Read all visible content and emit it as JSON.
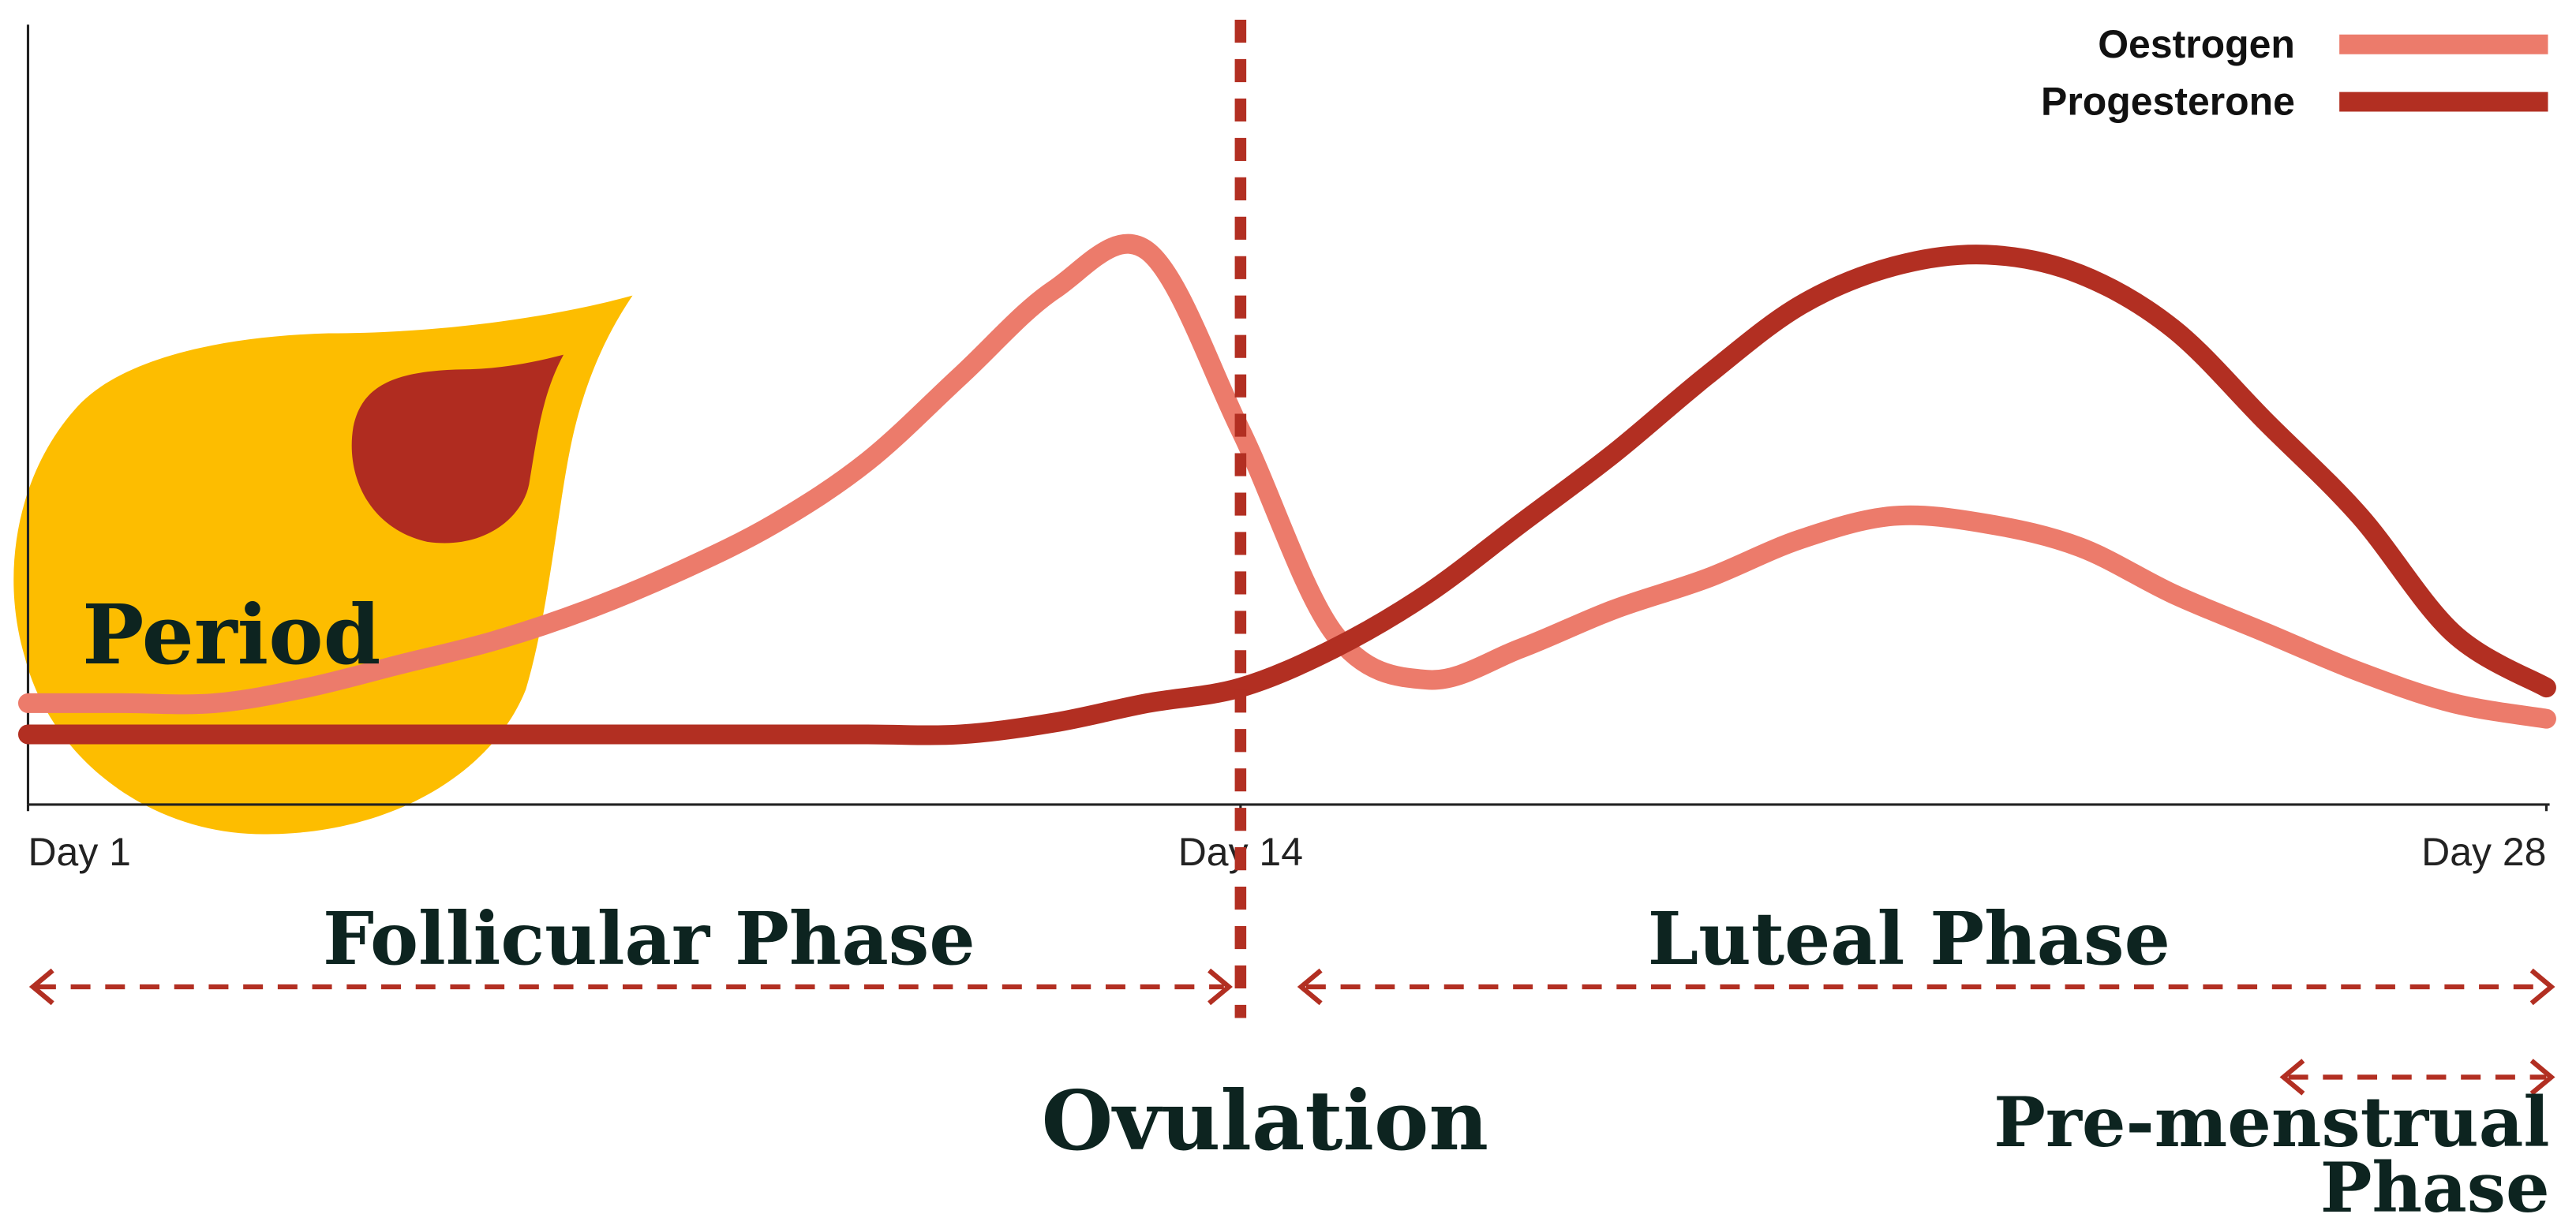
{
  "chart_data": {
    "type": "line",
    "x": [
      1,
      2,
      3,
      4,
      5,
      6,
      7,
      8,
      9,
      10,
      11,
      12,
      13,
      14,
      15,
      16,
      17,
      18,
      19,
      20,
      21,
      22,
      23,
      24,
      25,
      26,
      27,
      28
    ],
    "xlim": [
      1,
      28
    ],
    "xticks": [
      {
        "value": 1,
        "label": "Day 1"
      },
      {
        "value": 14,
        "label": "Day 14"
      },
      {
        "value": 28,
        "label": "Day 28"
      }
    ],
    "ylim": [
      0,
      100
    ],
    "series": [
      {
        "name": "Oestrogen",
        "color": "#ec7b6b",
        "values": [
          13,
          13,
          13,
          15,
          18,
          21,
          25,
          30,
          36,
          44,
          55,
          66,
          71,
          48,
          22,
          16,
          20,
          25,
          29,
          34,
          37,
          36,
          33,
          27,
          22,
          17,
          13,
          11
        ]
      },
      {
        "name": "Progesterone",
        "color": "#b22f22",
        "values": [
          9,
          9,
          9,
          9,
          9,
          9,
          9,
          9,
          9,
          9,
          9,
          10.5,
          13,
          15,
          20,
          27,
          36,
          45,
          55,
          64,
          69,
          70.5,
          68,
          61,
          49,
          37,
          22,
          15
        ]
      }
    ],
    "annotations": [
      "Period",
      "Follicular Phase",
      "Luteal Phase",
      "Ovulation",
      "Pre-menstrual Phase"
    ],
    "legend": "top-right"
  }
}
